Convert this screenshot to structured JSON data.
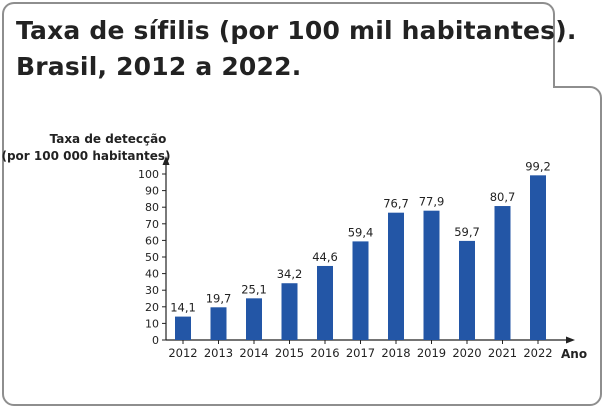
{
  "title": {
    "line1": "Taxa de sífilis (por 100 mil habitantes).",
    "line2": "Brasil, 2012 a 2022."
  },
  "chart_data": {
    "type": "bar",
    "ylabel_line1": "Taxa de detecção",
    "ylabel_line2": "(por 100 000 habitantes)",
    "xlabel": "Ano",
    "categories": [
      "2012",
      "2013",
      "2014",
      "2015",
      "2016",
      "2017",
      "2018",
      "2019",
      "2020",
      "2021",
      "2022"
    ],
    "values": [
      14.1,
      19.7,
      25.1,
      34.2,
      44.6,
      59.4,
      76.7,
      77.9,
      59.7,
      80.7,
      99.2
    ],
    "value_labels": [
      "14,1",
      "19,7",
      "25,1",
      "34,2",
      "44,6",
      "59,4",
      "76,7",
      "77,9",
      "59,7",
      "80,7",
      "99,2"
    ],
    "yticks": [
      0,
      10,
      20,
      30,
      40,
      50,
      60,
      70,
      80,
      90,
      100
    ],
    "ylim": [
      0,
      100
    ],
    "bar_color": "#2356a6",
    "grid": false
  }
}
